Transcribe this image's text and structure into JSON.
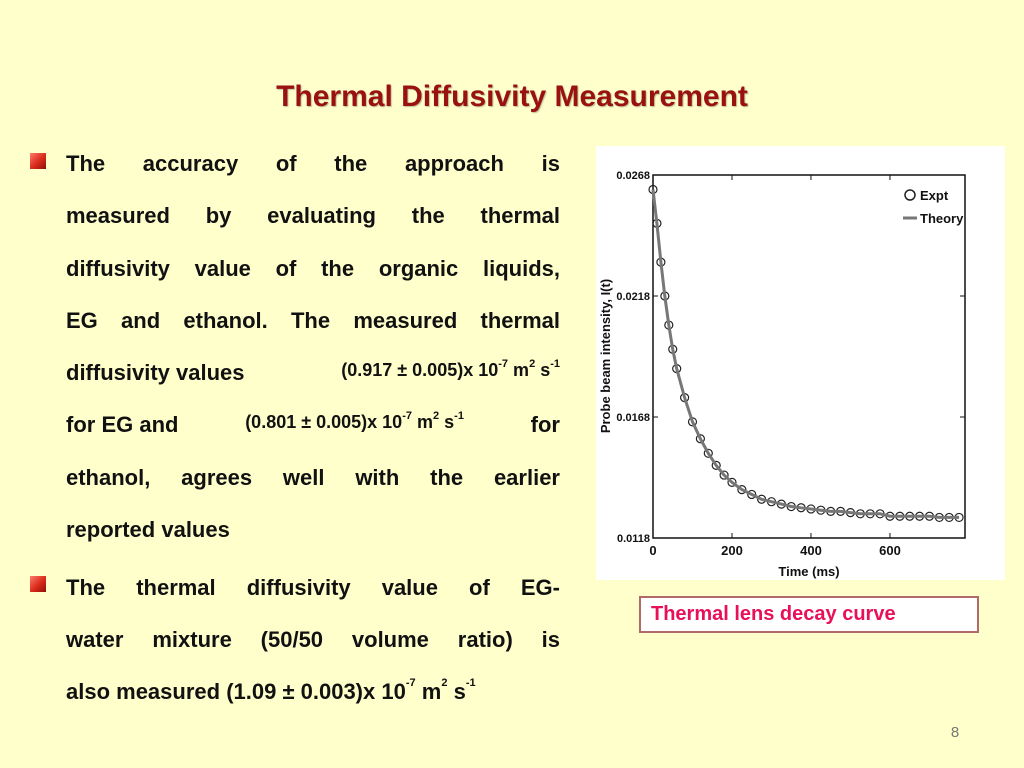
{
  "slide": {
    "title": "Thermal Diffusivity Measurement",
    "page_number": "8"
  },
  "bullet1": {
    "line1": [
      "The",
      "accuracy",
      "of",
      "the",
      "approach",
      "is"
    ],
    "line2": [
      "measured",
      "by",
      "evaluating",
      "the",
      "thermal"
    ],
    "line3": [
      "diffusivity",
      "value",
      "of",
      "the",
      "organic",
      "liquids,"
    ],
    "line4": [
      "EG",
      "and",
      "ethanol.",
      "The",
      "measured",
      "thermal"
    ],
    "line5": {
      "text": "diffusivity values",
      "value": "(0.917 ± 0.005)x 10",
      "exp": "-7",
      "unit_m": "m",
      "unit_m_exp": "2",
      "unit_s": "s",
      "unit_s_exp": "-1"
    },
    "line6": {
      "prefix": "for EG and",
      "value": "(0.801 ± 0.005)x 10",
      "exp": "-7",
      "unit_m": "m",
      "unit_m_exp": "2",
      "unit_s": "s",
      "unit_s_exp": "-1",
      "suffix": "for"
    },
    "line7": [
      "ethanol,",
      "agrees",
      "well",
      "with",
      "the",
      "earlier"
    ],
    "line8": "reported values"
  },
  "bullet2": {
    "line1": [
      "The",
      "thermal",
      "diffusivity",
      "value",
      "of",
      "EG-"
    ],
    "line2": [
      "water",
      "mixture",
      "(50/50",
      "volume",
      "ratio)",
      "is"
    ],
    "line3": {
      "text": "also measured  (1.09 ± 0.003)x 10",
      "exp": "-7",
      "unit_m": "m",
      "unit_m_exp": "2",
      "unit_s": "s",
      "unit_s_exp": "-1"
    }
  },
  "figure": {
    "caption": "Thermal lens decay curve"
  },
  "chart_data": {
    "type": "scatter",
    "title": "",
    "xlabel": "Time (ms)",
    "ylabel": "Probe beam intensity, I(t)",
    "xlim": [
      0,
      790
    ],
    "ylim": [
      0.0118,
      0.0268
    ],
    "xticks": [
      0,
      200,
      400,
      600
    ],
    "xtick_labels": [
      "0",
      "200",
      "400",
      "600"
    ],
    "yticks": [
      0.0118,
      0.0168,
      0.0218,
      0.0268
    ],
    "ytick_labels": [
      "0.0118",
      "0.0168",
      "0.0218",
      "0.0268"
    ],
    "legend_position": "top-right",
    "series": [
      {
        "name": "Expt",
        "marker": "open-circle",
        "color": "#222222",
        "x": [
          0,
          10,
          20,
          30,
          40,
          50,
          60,
          80,
          100,
          120,
          140,
          160,
          180,
          200,
          225,
          250,
          275,
          300,
          325,
          350,
          375,
          400,
          425,
          450,
          475,
          500,
          525,
          550,
          575,
          600,
          625,
          650,
          675,
          700,
          725,
          750,
          775
        ],
        "y": [
          0.0262,
          0.0248,
          0.0232,
          0.0218,
          0.0206,
          0.0196,
          0.0188,
          0.0176,
          0.0166,
          0.0159,
          0.0153,
          0.0148,
          0.0144,
          0.0141,
          0.0138,
          0.0136,
          0.0134,
          0.0133,
          0.0132,
          0.0131,
          0.01305,
          0.013,
          0.01295,
          0.0129,
          0.0129,
          0.01285,
          0.0128,
          0.0128,
          0.0128,
          0.0127,
          0.0127,
          0.0127,
          0.0127,
          0.0127,
          0.01265,
          0.01265,
          0.01265
        ]
      },
      {
        "name": "Theory",
        "marker": "line",
        "color": "#777777",
        "x": [
          0,
          10,
          20,
          30,
          40,
          50,
          60,
          80,
          100,
          120,
          140,
          160,
          180,
          200,
          225,
          250,
          275,
          300,
          325,
          350,
          375,
          400,
          425,
          450,
          475,
          500,
          525,
          550,
          575,
          600,
          625,
          650,
          675,
          700,
          725,
          750,
          775
        ],
        "y": [
          0.0262,
          0.0248,
          0.0232,
          0.0218,
          0.0206,
          0.0196,
          0.0188,
          0.0176,
          0.0166,
          0.0159,
          0.0153,
          0.0148,
          0.0144,
          0.0141,
          0.0138,
          0.0136,
          0.0134,
          0.0133,
          0.0132,
          0.0131,
          0.01305,
          0.013,
          0.01295,
          0.0129,
          0.0129,
          0.01285,
          0.0128,
          0.0128,
          0.0128,
          0.0127,
          0.0127,
          0.0127,
          0.0127,
          0.0127,
          0.01265,
          0.01265,
          0.01265
        ]
      }
    ]
  }
}
